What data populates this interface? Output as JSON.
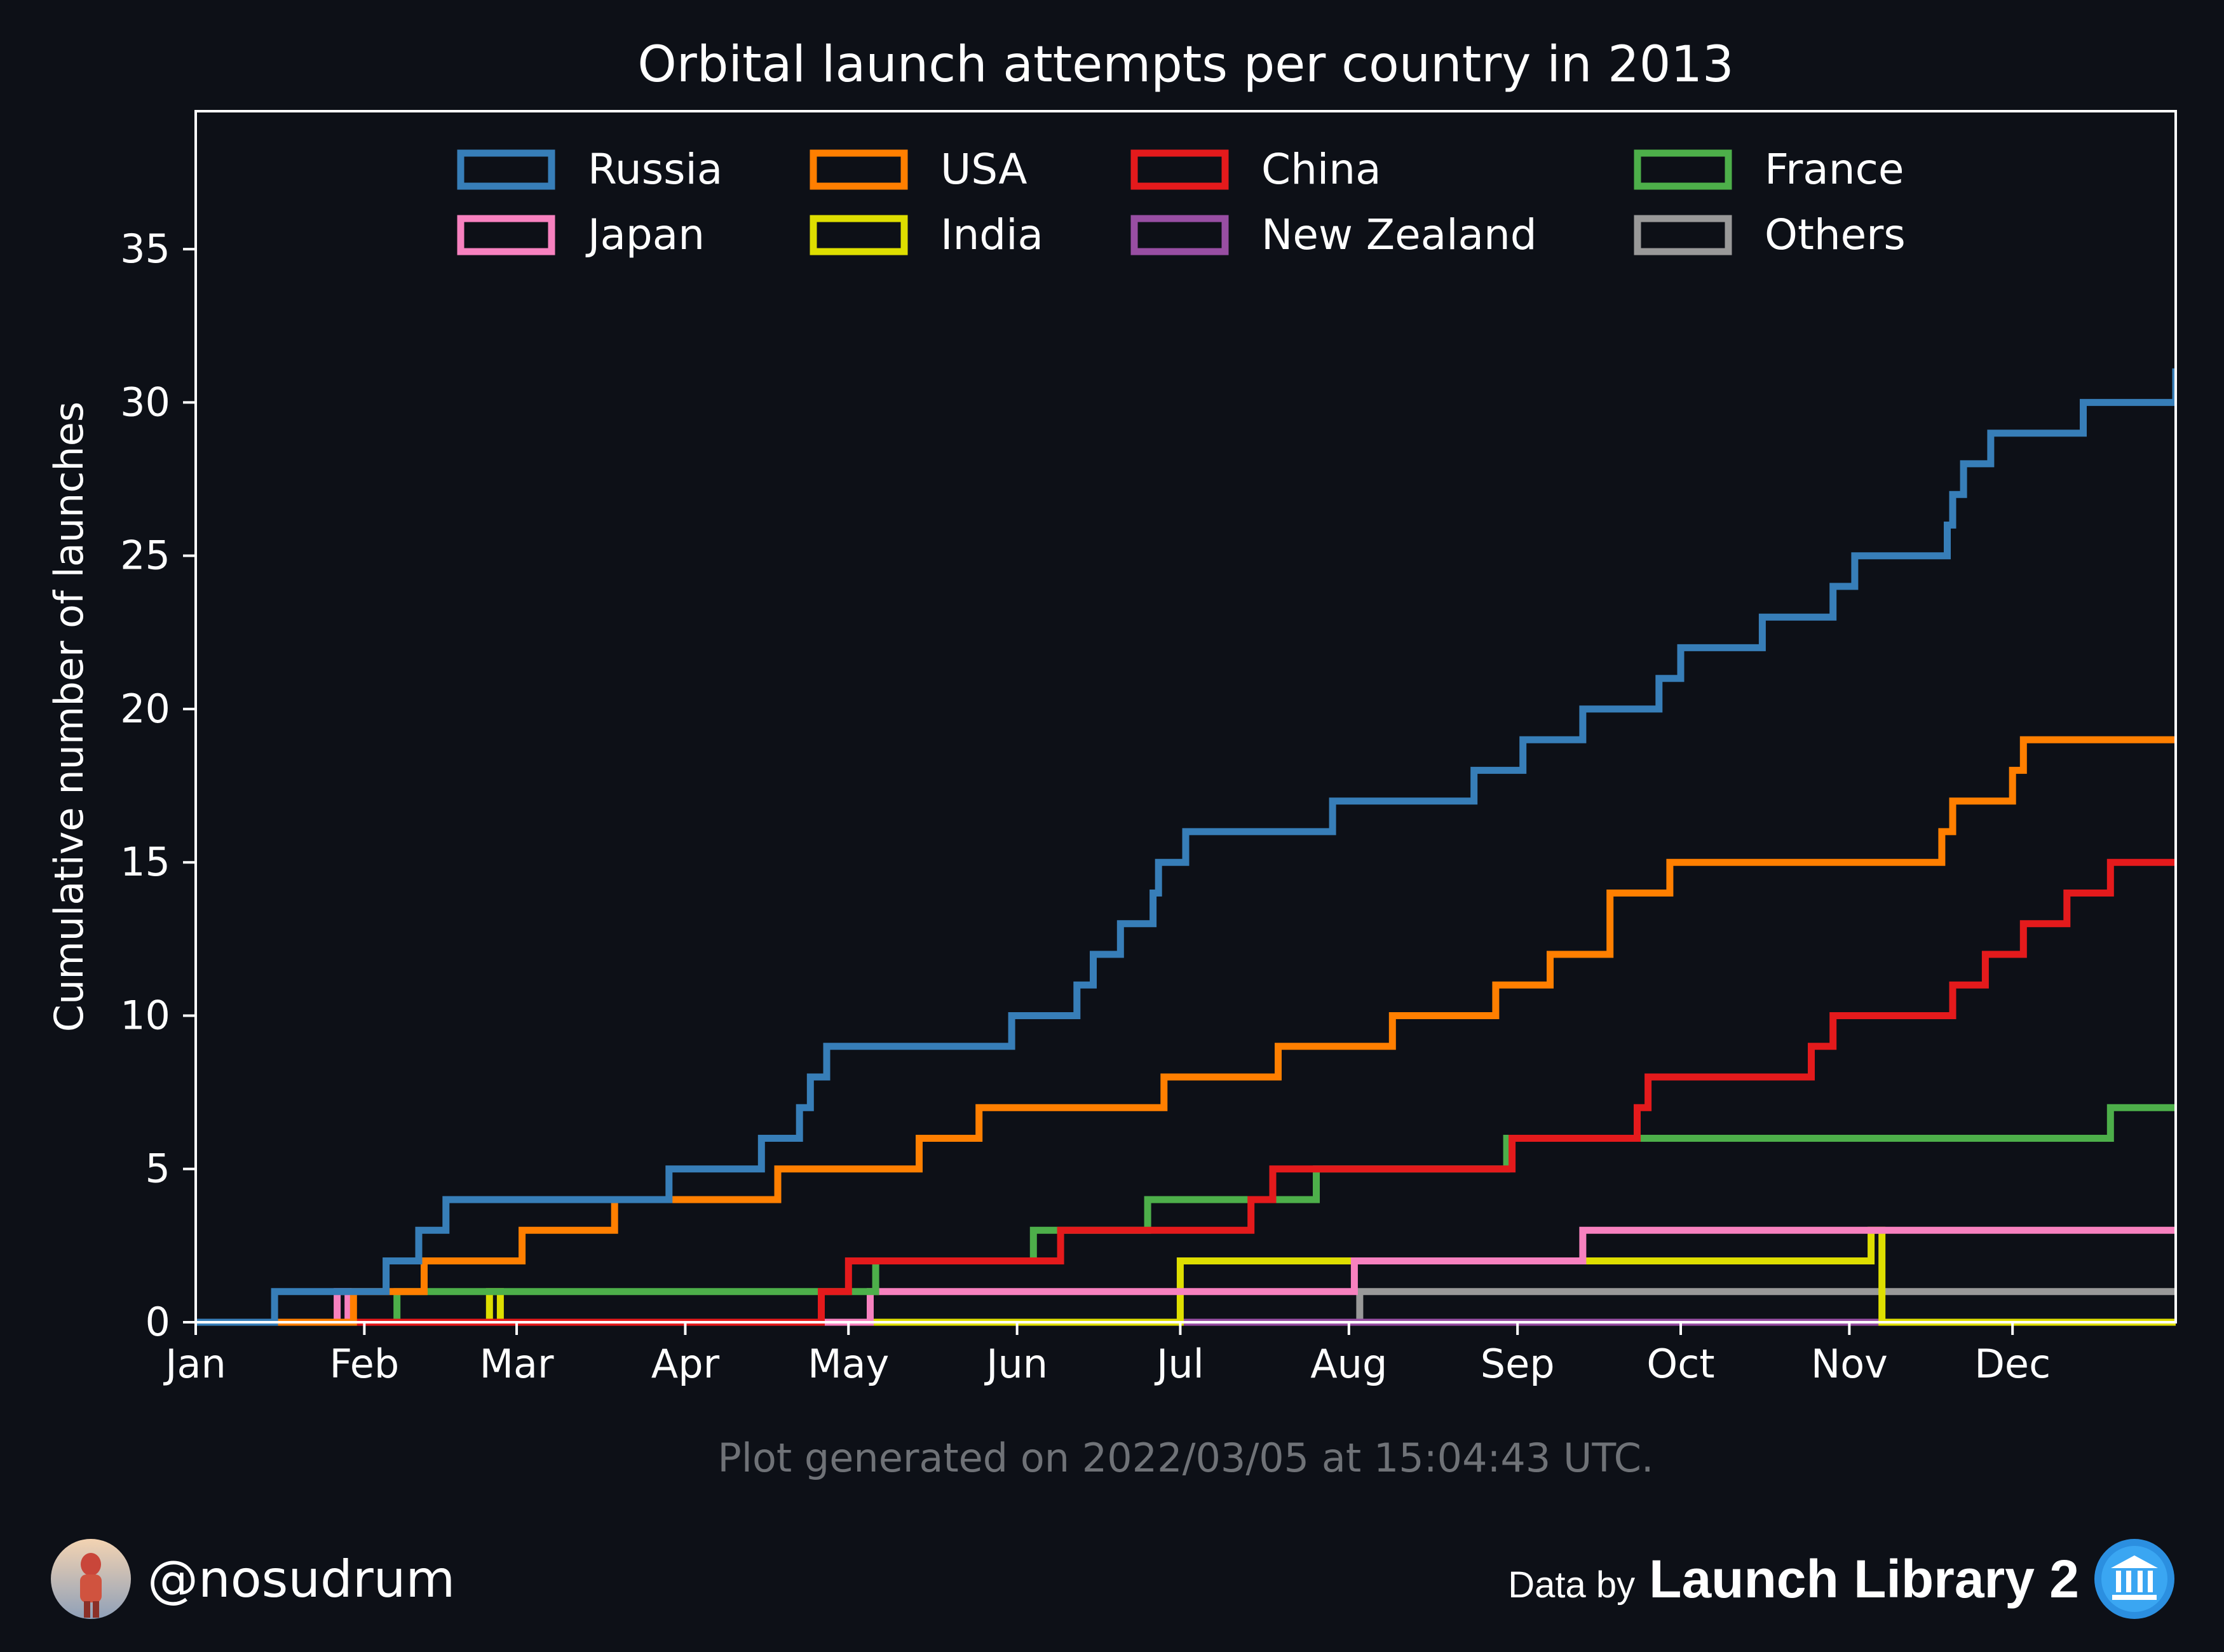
{
  "chart_data": {
    "type": "line",
    "step": true,
    "title": "Orbital launch attempts per country in 2013",
    "xlabel": "",
    "ylabel": "Cumulative number of launches",
    "xlim": [
      1,
      365
    ],
    "ylim": [
      0,
      39.5
    ],
    "yticks": [
      0,
      5,
      10,
      15,
      20,
      25,
      30,
      35
    ],
    "xticks": [
      {
        "label": "Jan",
        "day": 1
      },
      {
        "label": "Feb",
        "day": 32
      },
      {
        "label": "Mar",
        "day": 60
      },
      {
        "label": "Apr",
        "day": 91
      },
      {
        "label": "May",
        "day": 121
      },
      {
        "label": "Jun",
        "day": 152
      },
      {
        "label": "Jul",
        "day": 182
      },
      {
        "label": "Aug",
        "day": 213
      },
      {
        "label": "Sep",
        "day": 244
      },
      {
        "label": "Oct",
        "day": 274
      },
      {
        "label": "Nov",
        "day": 305
      },
      {
        "label": "Dec",
        "day": 335
      }
    ],
    "grid": false,
    "legend_position": "top",
    "legend_columns": 4,
    "series": [
      {
        "name": "Russia",
        "color": "#377eb8",
        "x": [
          1,
          15.5,
          32,
          36,
          42,
          47,
          86,
          88,
          105,
          107,
          112,
          114,
          117,
          151,
          163,
          166,
          171,
          177,
          178,
          183,
          210,
          236,
          245,
          256,
          270,
          274,
          289,
          302,
          306,
          323,
          324,
          326,
          331,
          348,
          365,
          366,
          368
        ],
        "y": [
          0,
          1,
          1,
          2,
          3,
          4,
          4,
          5,
          6,
          6,
          7,
          8,
          9,
          10,
          11,
          12,
          13,
          14,
          15,
          16,
          17,
          18,
          19,
          20,
          21,
          22,
          23,
          24,
          25,
          26,
          27,
          28,
          29,
          30,
          31,
          32,
          33
        ]
      },
      {
        "name": "USA",
        "color": "#ff7f00",
        "x": [
          1,
          30,
          33,
          43,
          61,
          78,
          88,
          108,
          134,
          145,
          179,
          200,
          221,
          240,
          250,
          261,
          272,
          322,
          324,
          335,
          337,
          366
        ],
        "y": [
          0,
          1,
          1,
          2,
          3,
          4,
          4,
          5,
          6,
          7,
          8,
          9,
          10,
          11,
          12,
          14,
          15,
          16,
          17,
          18,
          19,
          19
        ]
      },
      {
        "name": "China",
        "color": "#e41a1c",
        "x": [
          1,
          116,
          121,
          160,
          195,
          199,
          243,
          266,
          268,
          298,
          302,
          324,
          330,
          337,
          345,
          353,
          366
        ],
        "y": [
          0,
          1,
          2,
          3,
          4,
          5,
          6,
          7,
          8,
          9,
          10,
          11,
          12,
          13,
          14,
          15,
          15
        ]
      },
      {
        "name": "France",
        "color": "#4daf4a",
        "x": [
          1,
          38,
          126,
          155,
          176,
          207,
          242,
          270,
          353,
          366
        ],
        "y": [
          0,
          1,
          2,
          3,
          4,
          5,
          6,
          6,
          7,
          7
        ]
      },
      {
        "name": "Japan",
        "color": "#f781bf",
        "x": [
          1,
          27,
          29,
          125,
          214,
          256,
          366
        ],
        "y": [
          0,
          1,
          0,
          1,
          2,
          3,
          3
        ]
      },
      {
        "name": "India",
        "color": "#dede00",
        "x": [
          1,
          55,
          57,
          182,
          256,
          309,
          311,
          366
        ],
        "y": [
          0,
          1,
          0,
          2,
          2,
          3,
          0,
          0
        ]
      },
      {
        "name": "New Zealand",
        "color": "#984ea3",
        "x": [
          1,
          366
        ],
        "y": [
          0,
          0
        ]
      },
      {
        "name": "Others",
        "color": "#999999",
        "x": [
          1,
          215,
          366
        ],
        "y": [
          0,
          1,
          1
        ]
      }
    ]
  },
  "footer": {
    "generated": "Plot generated on 2022/03/05 at 15:04:43 UTC.",
    "handle": "@nosudrum",
    "data_by": "Data by",
    "source": "Launch Library 2"
  }
}
